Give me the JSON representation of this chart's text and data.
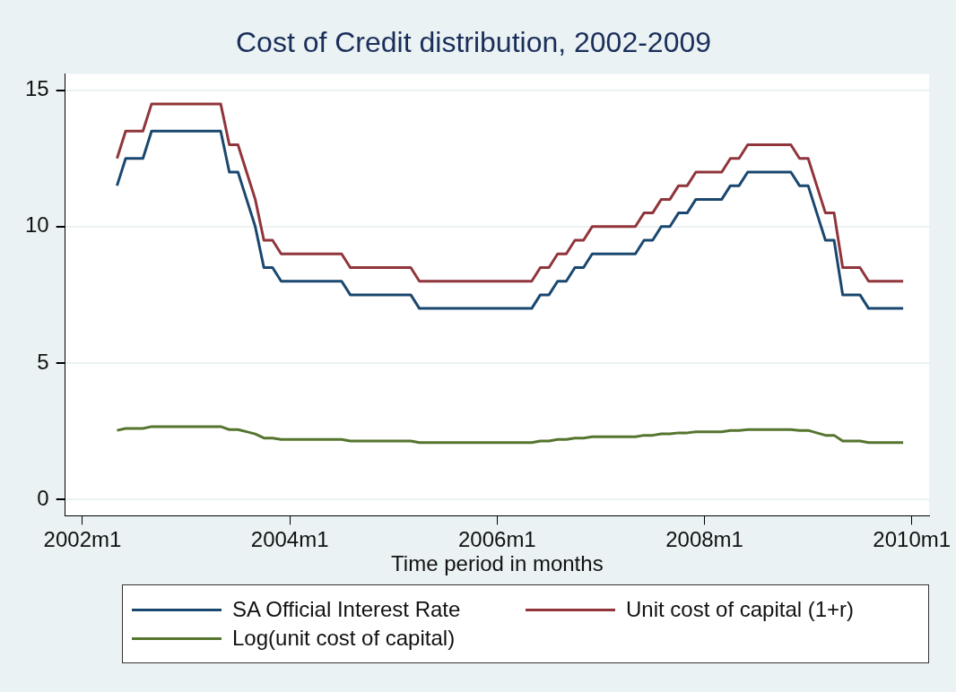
{
  "chart_data": {
    "type": "line",
    "title": "Cost of Credit distribution, 2002-2009",
    "xlabel": "Time period in months",
    "x": [
      "2002-05",
      "2002-06",
      "2002-07",
      "2002-08",
      "2002-09",
      "2002-10",
      "2002-11",
      "2002-12",
      "2003-01",
      "2003-02",
      "2003-03",
      "2003-04",
      "2003-05",
      "2003-06",
      "2003-07",
      "2003-08",
      "2003-09",
      "2003-10",
      "2003-11",
      "2003-12",
      "2004-01",
      "2004-02",
      "2004-03",
      "2004-04",
      "2004-05",
      "2004-06",
      "2004-07",
      "2004-08",
      "2004-09",
      "2004-10",
      "2004-11",
      "2004-12",
      "2005-01",
      "2005-02",
      "2005-03",
      "2005-04",
      "2005-05",
      "2005-06",
      "2005-07",
      "2005-08",
      "2005-09",
      "2005-10",
      "2005-11",
      "2005-12",
      "2006-01",
      "2006-02",
      "2006-03",
      "2006-04",
      "2006-05",
      "2006-06",
      "2006-07",
      "2006-08",
      "2006-09",
      "2006-10",
      "2006-11",
      "2006-12",
      "2007-01",
      "2007-02",
      "2007-03",
      "2007-04",
      "2007-05",
      "2007-06",
      "2007-07",
      "2007-08",
      "2007-09",
      "2007-10",
      "2007-11",
      "2007-12",
      "2008-01",
      "2008-02",
      "2008-03",
      "2008-04",
      "2008-05",
      "2008-06",
      "2008-07",
      "2008-08",
      "2008-09",
      "2008-10",
      "2008-11",
      "2008-12",
      "2009-01",
      "2009-02",
      "2009-03",
      "2009-04",
      "2009-05",
      "2009-06",
      "2009-07",
      "2009-08",
      "2009-09",
      "2009-10",
      "2009-11",
      "2009-12"
    ],
    "series": [
      {
        "name": "SA Official Interest Rate",
        "color": "#1a476f",
        "values": [
          11.5,
          12.5,
          12.5,
          12.5,
          13.5,
          13.5,
          13.5,
          13.5,
          13.5,
          13.5,
          13.5,
          13.5,
          13.5,
          12,
          12,
          11,
          10,
          8.5,
          8.5,
          8,
          8,
          8,
          8,
          8,
          8,
          8,
          8,
          7.5,
          7.5,
          7.5,
          7.5,
          7.5,
          7.5,
          7.5,
          7.5,
          7,
          7,
          7,
          7,
          7,
          7,
          7,
          7,
          7,
          7,
          7,
          7,
          7,
          7,
          7.5,
          7.5,
          8,
          8,
          8.5,
          8.5,
          9,
          9,
          9,
          9,
          9,
          9,
          9.5,
          9.5,
          10,
          10,
          10.5,
          10.5,
          11,
          11,
          11,
          11,
          11.5,
          11.5,
          12,
          12,
          12,
          12,
          12,
          12,
          11.5,
          11.5,
          10.5,
          9.5,
          9.5,
          7.5,
          7.5,
          7.5,
          7,
          7,
          7,
          7,
          7
        ]
      },
      {
        "name": "Unit cost of capital (1+r)",
        "color": "#90353b",
        "values": [
          12.5,
          13.5,
          13.5,
          13.5,
          14.5,
          14.5,
          14.5,
          14.5,
          14.5,
          14.5,
          14.5,
          14.5,
          14.5,
          13,
          13,
          12,
          11,
          9.5,
          9.5,
          9,
          9,
          9,
          9,
          9,
          9,
          9,
          9,
          8.5,
          8.5,
          8.5,
          8.5,
          8.5,
          8.5,
          8.5,
          8.5,
          8,
          8,
          8,
          8,
          8,
          8,
          8,
          8,
          8,
          8,
          8,
          8,
          8,
          8,
          8.5,
          8.5,
          9,
          9,
          9.5,
          9.5,
          10,
          10,
          10,
          10,
          10,
          10,
          10.5,
          10.5,
          11,
          11,
          11.5,
          11.5,
          12,
          12,
          12,
          12,
          12.5,
          12.5,
          13,
          13,
          13,
          13,
          13,
          13,
          12.5,
          12.5,
          11.5,
          10.5,
          10.5,
          8.5,
          8.5,
          8.5,
          8,
          8,
          8,
          8,
          8
        ]
      },
      {
        "name": "Log(unit cost of capital)",
        "color": "#55752f",
        "values": [
          2.53,
          2.6,
          2.6,
          2.6,
          2.67,
          2.67,
          2.67,
          2.67,
          2.67,
          2.67,
          2.67,
          2.67,
          2.67,
          2.56,
          2.56,
          2.48,
          2.4,
          2.25,
          2.25,
          2.2,
          2.2,
          2.2,
          2.2,
          2.2,
          2.2,
          2.2,
          2.2,
          2.14,
          2.14,
          2.14,
          2.14,
          2.14,
          2.14,
          2.14,
          2.14,
          2.08,
          2.08,
          2.08,
          2.08,
          2.08,
          2.08,
          2.08,
          2.08,
          2.08,
          2.08,
          2.08,
          2.08,
          2.08,
          2.08,
          2.14,
          2.14,
          2.2,
          2.2,
          2.25,
          2.25,
          2.3,
          2.3,
          2.3,
          2.3,
          2.3,
          2.3,
          2.35,
          2.35,
          2.4,
          2.4,
          2.44,
          2.44,
          2.48,
          2.48,
          2.48,
          2.48,
          2.53,
          2.53,
          2.56,
          2.56,
          2.56,
          2.56,
          2.56,
          2.56,
          2.53,
          2.53,
          2.44,
          2.35,
          2.35,
          2.14,
          2.14,
          2.14,
          2.08,
          2.08,
          2.08,
          2.08,
          2.08
        ]
      }
    ],
    "xlim": [
      "2001-11",
      "2010-03"
    ],
    "xticks": [
      {
        "value": "2002-01",
        "label": "2002m1"
      },
      {
        "value": "2004-01",
        "label": "2004m1"
      },
      {
        "value": "2006-01",
        "label": "2006m1"
      },
      {
        "value": "2008-01",
        "label": "2008m1"
      },
      {
        "value": "2010-01",
        "label": "2010m1"
      }
    ],
    "ylim": [
      -0.6,
      15.6
    ],
    "yticks": [
      0,
      5,
      10,
      15
    ],
    "grid": "y",
    "legend": "bottom",
    "marker": "none",
    "line_style": "solid"
  }
}
